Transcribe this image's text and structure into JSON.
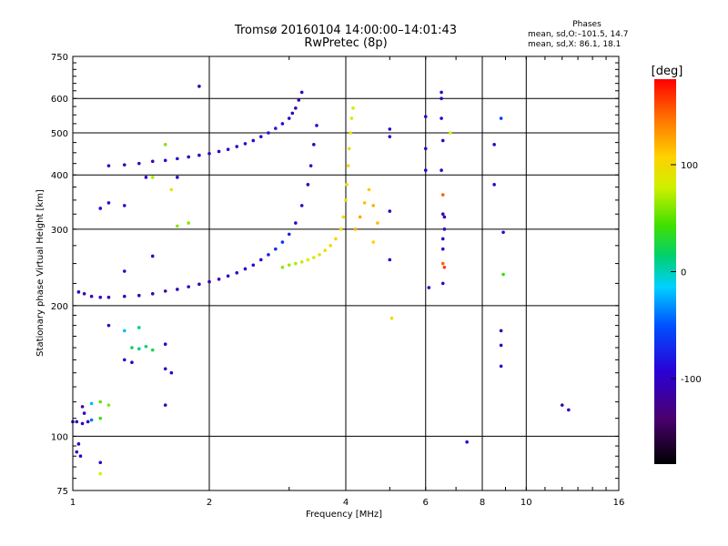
{
  "title": "Tromsø 20160104 14:00:00–14:01:43",
  "subtitle": "RwPretec (8p)",
  "phases": {
    "heading": "Phases",
    "line_o": "mean, sd,O:–101.5, 14.7",
    "line_x": "mean, sd,X:  86.1, 18.1"
  },
  "chart_data": {
    "type": "scatter",
    "xlabel": "Frequency [MHz]",
    "ylabel": "Stationary phase Virtual Height [km]",
    "xscale": "log",
    "yscale": "log",
    "xlim": [
      1,
      16
    ],
    "ylim": [
      75,
      750
    ],
    "xticks": [
      1,
      2,
      4,
      6,
      8,
      10,
      16
    ],
    "yticks": [
      75,
      100,
      200,
      300,
      400,
      500,
      600,
      750
    ],
    "grid_x": [
      2,
      4,
      6,
      8,
      10
    ],
    "grid_y": [
      100,
      200,
      300,
      400,
      500,
      600
    ],
    "colorbar": {
      "label": "[deg]",
      "min": -180,
      "max": 180,
      "ticks": [
        -100,
        0,
        100
      ]
    },
    "series": [
      {
        "points": [
          [
            1.03,
            215,
            -105
          ],
          [
            1.06,
            213,
            -110
          ],
          [
            1.1,
            210,
            -112
          ],
          [
            1.15,
            209,
            -108
          ],
          [
            1.2,
            209,
            -110
          ],
          [
            1.3,
            210,
            -105
          ],
          [
            1.4,
            211,
            -110
          ],
          [
            1.5,
            213,
            -108
          ],
          [
            1.6,
            216,
            -112
          ],
          [
            1.7,
            218,
            -105
          ],
          [
            1.8,
            221,
            -110
          ],
          [
            1.9,
            224,
            -108
          ],
          [
            2.0,
            227,
            -110
          ],
          [
            2.1,
            230,
            -106
          ],
          [
            2.2,
            234,
            -104
          ],
          [
            2.3,
            238,
            -100
          ],
          [
            2.4,
            243,
            -96
          ],
          [
            2.5,
            248,
            -92
          ],
          [
            2.6,
            255,
            -85
          ],
          [
            2.7,
            262,
            -80
          ],
          [
            2.8,
            270,
            -70
          ],
          [
            2.9,
            280,
            -65
          ],
          [
            3.0,
            292,
            -75
          ],
          [
            3.1,
            310,
            -95
          ],
          [
            3.2,
            340,
            -100
          ],
          [
            3.3,
            380,
            -105
          ],
          [
            3.35,
            420,
            -100
          ],
          [
            3.4,
            470,
            -100
          ],
          [
            3.45,
            520,
            -95
          ]
        ]
      },
      {
        "points": [
          [
            1.2,
            420,
            -100
          ],
          [
            1.3,
            422,
            -105
          ],
          [
            1.4,
            425,
            -100
          ],
          [
            1.5,
            430,
            -110
          ],
          [
            1.6,
            432,
            -95
          ],
          [
            1.7,
            436,
            -100
          ],
          [
            1.8,
            440,
            -105
          ],
          [
            1.9,
            444,
            -100
          ],
          [
            2.0,
            448,
            -105
          ],
          [
            2.1,
            453,
            -100
          ],
          [
            2.2,
            458,
            -95
          ],
          [
            2.3,
            465,
            -100
          ],
          [
            2.4,
            472,
            -100
          ],
          [
            2.5,
            480,
            -95
          ],
          [
            2.6,
            490,
            -90
          ],
          [
            2.7,
            500,
            -85
          ],
          [
            2.8,
            512,
            -80
          ],
          [
            2.9,
            525,
            -95
          ],
          [
            3.0,
            540,
            -100
          ],
          [
            3.05,
            555,
            -105
          ],
          [
            3.1,
            570,
            -110
          ],
          [
            3.15,
            595,
            -110
          ],
          [
            3.2,
            620,
            -105
          ]
        ]
      },
      {
        "points": [
          [
            2.9,
            245,
            60
          ],
          [
            3.0,
            248,
            65
          ],
          [
            3.1,
            250,
            70
          ],
          [
            3.2,
            252,
            75
          ],
          [
            3.3,
            255,
            80
          ],
          [
            3.4,
            258,
            85
          ],
          [
            3.5,
            262,
            90
          ],
          [
            3.6,
            268,
            95
          ],
          [
            3.7,
            275,
            98
          ],
          [
            3.8,
            285,
            100
          ],
          [
            3.9,
            300,
            105
          ],
          [
            3.95,
            320,
            100
          ],
          [
            4.0,
            350,
            95
          ],
          [
            4.02,
            380,
            100
          ],
          [
            4.05,
            420,
            105
          ],
          [
            4.07,
            460,
            95
          ],
          [
            4.1,
            500,
            100
          ],
          [
            4.12,
            540,
            90
          ],
          [
            4.15,
            570,
            85
          ]
        ]
      },
      {
        "points": [
          [
            4.2,
            300,
            120
          ],
          [
            4.3,
            320,
            125
          ],
          [
            4.4,
            345,
            115
          ],
          [
            4.5,
            370,
            110
          ],
          [
            4.6,
            340,
            120
          ],
          [
            4.7,
            310,
            115
          ],
          [
            4.6,
            280,
            105
          ]
        ]
      },
      {
        "points": [
          [
            1.02,
            108,
            -95
          ],
          [
            1.05,
            107,
            -100
          ],
          [
            1.08,
            108,
            -105
          ],
          [
            1.1,
            109,
            -40
          ],
          [
            1.15,
            110,
            40
          ],
          [
            1.05,
            117,
            -110
          ],
          [
            1.1,
            119,
            -20
          ],
          [
            1.15,
            120,
            50
          ],
          [
            1.2,
            118,
            60
          ],
          [
            1.02,
            92,
            -100
          ],
          [
            1.03,
            96,
            -110
          ],
          [
            1.04,
            90,
            -95
          ],
          [
            1.15,
            87,
            -100
          ],
          [
            1.15,
            82,
            80
          ]
        ]
      },
      {
        "points": [
          [
            1.35,
            160,
            20
          ],
          [
            1.4,
            159,
            10
          ],
          [
            1.45,
            161,
            15
          ],
          [
            1.5,
            158,
            25
          ],
          [
            1.6,
            163,
            -100
          ],
          [
            1.2,
            180,
            -100
          ],
          [
            1.3,
            175,
            -20
          ],
          [
            1.4,
            178,
            10
          ],
          [
            1.6,
            143,
            -100
          ],
          [
            1.65,
            140,
            -95
          ],
          [
            1.3,
            150,
            -100
          ],
          [
            1.35,
            148,
            -100
          ],
          [
            1.6,
            118,
            -100
          ]
        ]
      },
      {
        "points": [
          [
            1.0,
            108,
            -110
          ],
          [
            1.06,
            113,
            -100
          ],
          [
            1.3,
            340,
            -100
          ],
          [
            1.2,
            345,
            -100
          ],
          [
            1.15,
            335,
            -95
          ],
          [
            1.9,
            640,
            -110
          ],
          [
            1.7,
            305,
            60
          ],
          [
            1.8,
            310,
            60
          ],
          [
            1.6,
            470,
            60
          ],
          [
            1.5,
            395,
            70
          ],
          [
            1.65,
            370,
            90
          ],
          [
            1.7,
            395,
            -100
          ],
          [
            1.45,
            395,
            -100
          ],
          [
            1.3,
            240,
            -100
          ],
          [
            1.5,
            260,
            -100
          ]
        ]
      },
      {
        "points": [
          [
            5.0,
            510,
            -100
          ],
          [
            5.0,
            490,
            -100
          ],
          [
            5.0,
            330,
            -100
          ],
          [
            5.0,
            255,
            -100
          ],
          [
            5.05,
            187,
            100
          ],
          [
            6.0,
            545,
            -100
          ],
          [
            6.0,
            460,
            -100
          ],
          [
            6.0,
            410,
            -100
          ],
          [
            6.1,
            220,
            -100
          ],
          [
            6.5,
            620,
            -100
          ],
          [
            6.5,
            600,
            -100
          ],
          [
            6.5,
            540,
            -95
          ],
          [
            6.55,
            480,
            -100
          ],
          [
            6.5,
            410,
            -100
          ],
          [
            6.55,
            360,
            150
          ],
          [
            6.55,
            325,
            -110
          ],
          [
            6.6,
            320,
            -105
          ],
          [
            6.6,
            300,
            -100
          ],
          [
            6.55,
            285,
            -100
          ],
          [
            6.55,
            270,
            -100
          ],
          [
            6.55,
            250,
            150
          ],
          [
            6.6,
            245,
            160
          ],
          [
            6.55,
            225,
            -100
          ],
          [
            6.8,
            500,
            80
          ],
          [
            7.4,
            97,
            -95
          ],
          [
            8.5,
            470,
            -100
          ],
          [
            8.5,
            380,
            -100
          ],
          [
            8.8,
            540,
            -60
          ],
          [
            8.9,
            295,
            -100
          ],
          [
            8.9,
            236,
            40
          ],
          [
            8.8,
            175,
            -110
          ],
          [
            8.8,
            162,
            -100
          ],
          [
            8.8,
            145,
            -100
          ],
          [
            12.0,
            118,
            -110
          ],
          [
            12.4,
            115,
            -100
          ]
        ]
      }
    ]
  }
}
